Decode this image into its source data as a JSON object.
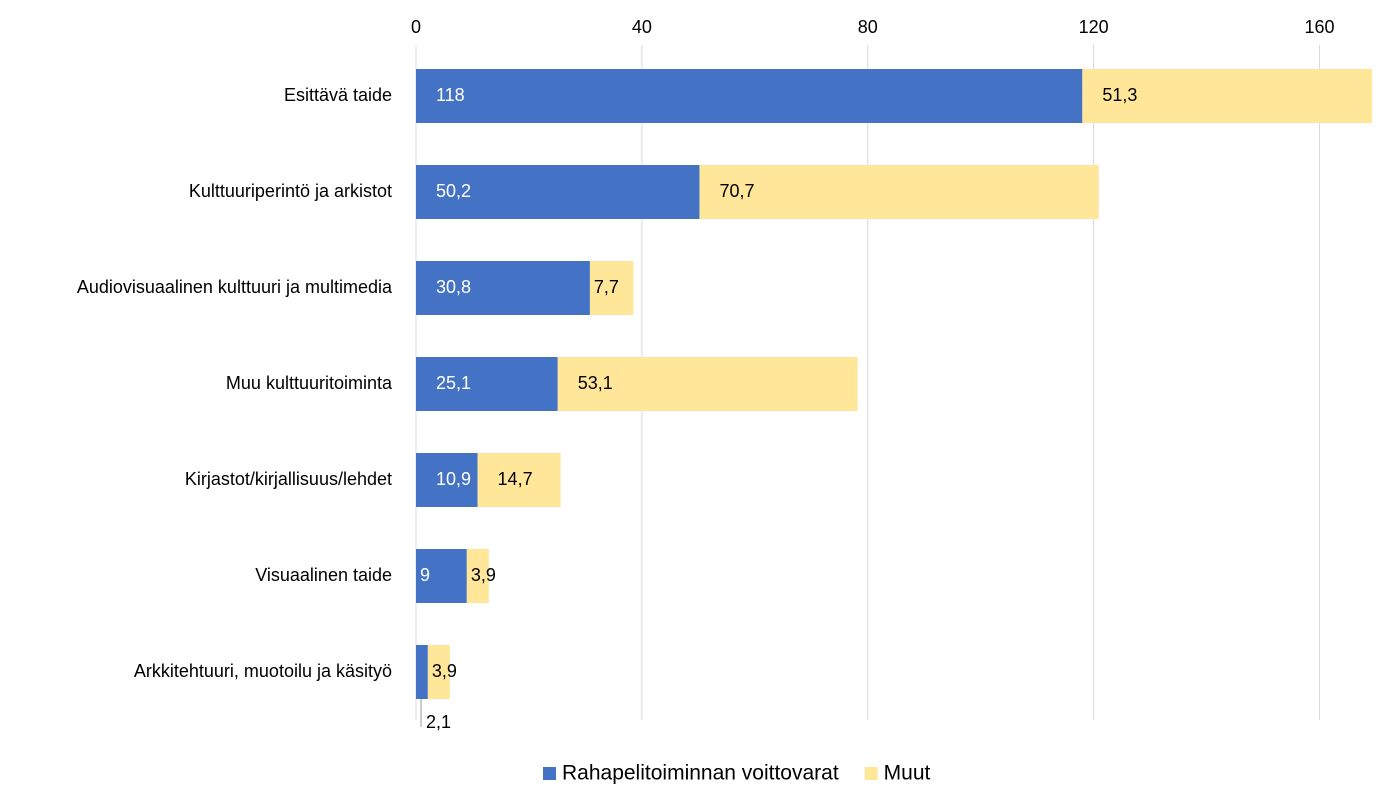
{
  "chart_data": {
    "type": "stacked-barh",
    "categories": [
      "Esittävä taide",
      "Kulttuuriperintö ja arkistot",
      "Audiovisuaalinen kulttuuri ja multimedia",
      "Muu kulttuuritoiminta",
      "Kirjastot/kirjallisuus/lehdet",
      "Visuaalinen taide",
      "Arkkitehtuuri, muotoilu ja käsityö"
    ],
    "series": [
      {
        "name": "Rahapelitoiminnan voittovarat",
        "color": "#4472c4",
        "values": [
          118,
          50.2,
          30.8,
          25.1,
          10.9,
          9,
          2.1
        ],
        "value_labels": [
          "118",
          "50,2",
          "30,8",
          "25,1",
          "10,9",
          "9",
          "2,1"
        ]
      },
      {
        "name": "Muut",
        "color": "#ffe699",
        "values": [
          51.3,
          70.7,
          7.7,
          53.1,
          14.7,
          3.9,
          3.9
        ],
        "value_labels": [
          "51,3",
          "70,7",
          "7,7",
          "53,1",
          "14,7",
          "3,9",
          "3,9"
        ]
      }
    ],
    "xlim": [
      0,
      170
    ],
    "xticks": [
      0,
      40,
      80,
      120,
      160
    ],
    "grid": true,
    "legend": "bottom"
  }
}
